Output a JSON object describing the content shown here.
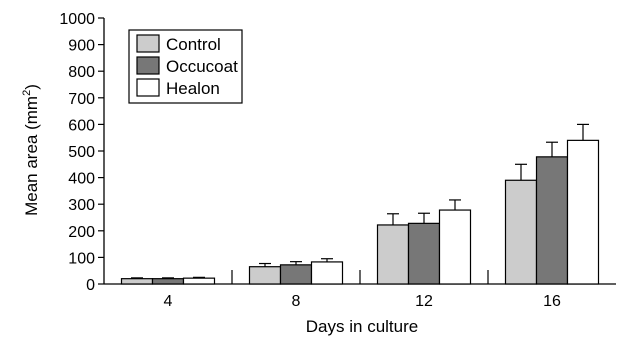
{
  "chart_data": {
    "type": "bar",
    "xlabel": "Days in culture",
    "ylabel": "Mean area (mm",
    "ylabel_sup": "2",
    "ylabel_close": ")",
    "categories": [
      "4",
      "8",
      "12",
      "16"
    ],
    "series": [
      {
        "name": "Control",
        "color": "#cccccc",
        "values": [
          20,
          65,
          222,
          390
        ],
        "errors": [
          3,
          12,
          42,
          60
        ]
      },
      {
        "name": "Occucoat",
        "color": "#777777",
        "values": [
          20,
          72,
          228,
          478
        ],
        "errors": [
          3,
          12,
          38,
          55
        ]
      },
      {
        "name": "Healon",
        "color": "#ffffff",
        "values": [
          22,
          83,
          278,
          540
        ],
        "errors": [
          3,
          12,
          38,
          60
        ]
      }
    ],
    "ylim": [
      0,
      1000
    ],
    "yticks": [
      "0",
      "100",
      "200",
      "300",
      "400",
      "500",
      "600",
      "700",
      "800",
      "900",
      "1000"
    ],
    "grid": false,
    "legend_position": "top-left"
  }
}
